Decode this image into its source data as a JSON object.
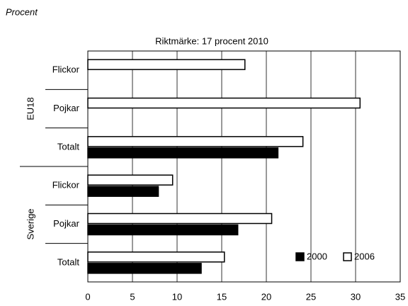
{
  "chart_data": {
    "type": "bar",
    "orientation": "horizontal",
    "title": "Riktmärke: 17 procent 2010",
    "y_label": "Procent",
    "groups": [
      {
        "label": "EU18",
        "categories": [
          "Flickor",
          "Pojkar",
          "Totalt"
        ]
      },
      {
        "label": "Sverige",
        "categories": [
          "Flickor",
          "Pojkar",
          "Totalt"
        ]
      }
    ],
    "series": [
      {
        "name": "2000",
        "color": "#000000",
        "values": [
          null,
          null,
          21.3,
          7.9,
          16.8,
          12.7
        ]
      },
      {
        "name": "2006",
        "color": "#ffffff",
        "values": [
          17.6,
          30.5,
          24.1,
          9.5,
          20.6,
          15.3
        ]
      }
    ],
    "xlim": [
      0,
      35
    ],
    "xticks": [
      0,
      5,
      10,
      15,
      20,
      25,
      30,
      35
    ],
    "grid": true,
    "legend": "lower right"
  }
}
